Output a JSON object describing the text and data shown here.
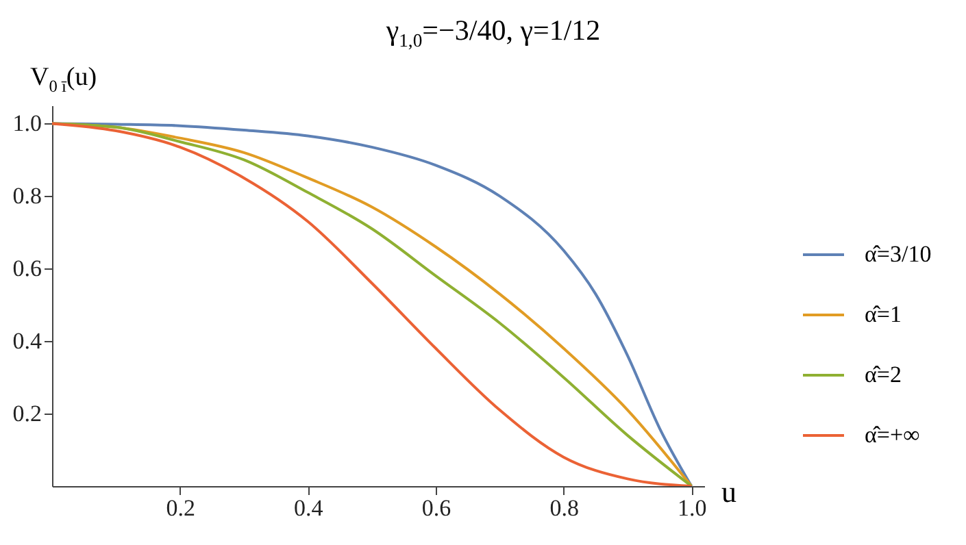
{
  "chart_data": {
    "type": "line",
    "title": "γ$_{1,0}$=−3/40, γ=1/12",
    "xlabel": "u",
    "ylabel": "V$_{0 ī}$(u)",
    "x": [
      0,
      0.1,
      0.2,
      0.3,
      0.4,
      0.5,
      0.6,
      0.7,
      0.8,
      0.9,
      1.0
    ],
    "series": [
      {
        "name": "α̂=3/10",
        "color": "#5e81b5",
        "x": [
          0,
          0.1,
          0.2,
          0.3,
          0.4,
          0.5,
          0.6,
          0.7,
          0.8,
          0.85,
          0.9,
          0.95,
          1.0
        ],
        "values": [
          1.0,
          0.998,
          0.994,
          0.982,
          0.966,
          0.935,
          0.885,
          0.8,
          0.65,
          0.53,
          0.36,
          0.16,
          0
        ]
      },
      {
        "name": "α̂=1",
        "color": "#e19c24",
        "values": [
          1.0,
          0.99,
          0.96,
          0.92,
          0.85,
          0.77,
          0.66,
          0.53,
          0.38,
          0.21,
          0
        ]
      },
      {
        "name": "α̂=2",
        "color": "#8fb032",
        "values": [
          1.0,
          0.99,
          0.95,
          0.9,
          0.81,
          0.71,
          0.58,
          0.45,
          0.3,
          0.14,
          0
        ]
      },
      {
        "name": "α̂=+∞",
        "color": "#eb6235",
        "values": [
          1.0,
          0.98,
          0.935,
          0.85,
          0.73,
          0.56,
          0.38,
          0.21,
          0.08,
          0.02,
          0
        ]
      }
    ],
    "xlim": [
      0,
      1.02
    ],
    "ylim": [
      0,
      1.05
    ],
    "xticks": [
      0.2,
      0.4,
      0.6,
      0.8,
      {
        "value": 1,
        "label": "1.0"
      }
    ],
    "yticks": [
      0.2,
      0.4,
      0.6,
      0.8,
      {
        "value": 1,
        "label": "1.0"
      }
    ],
    "legend": "right"
  }
}
